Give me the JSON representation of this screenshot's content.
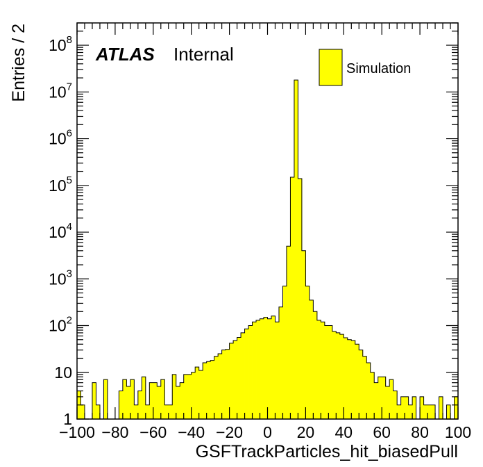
{
  "chart_data": {
    "type": "histogram",
    "xlabel": "GSFTrackParticles_hit_biasedPull",
    "ylabel": "Entries / 2",
    "xlim": [
      -100,
      100
    ],
    "ylim": [
      1,
      300000000
    ],
    "yscale": "log",
    "bin_width": 2,
    "fill_color": "#ffff00",
    "line_color": "#000000",
    "x_ticks": [
      -100,
      -80,
      -60,
      -40,
      -20,
      0,
      20,
      40,
      60,
      80,
      100
    ],
    "x_tick_labels": [
      "−100",
      "−80",
      "−60",
      "−40",
      "−20",
      "0",
      "20",
      "40",
      "60",
      "80",
      "100"
    ],
    "y_ticks": [
      {
        "value": 1,
        "base": "1",
        "exp": ""
      },
      {
        "value": 10,
        "base": "10",
        "exp": ""
      },
      {
        "value": 100,
        "base": "10",
        "exp": "2"
      },
      {
        "value": 1000,
        "base": "10",
        "exp": "3"
      },
      {
        "value": 10000,
        "base": "10",
        "exp": "4"
      },
      {
        "value": 100000,
        "base": "10",
        "exp": "5"
      },
      {
        "value": 1000000,
        "base": "10",
        "exp": "6"
      },
      {
        "value": 10000000,
        "base": "10",
        "exp": "7"
      },
      {
        "value": 100000000,
        "base": "10",
        "exp": "8"
      }
    ],
    "atlas_label": "ATLAS",
    "atlas_sublabel": "Internal",
    "legend": [
      {
        "name": "Simulation",
        "color": "#ffff00"
      }
    ],
    "legend_position": "top-right",
    "values": [
      4,
      2,
      1,
      1,
      6,
      2,
      1,
      7,
      1,
      0,
      0,
      4,
      7,
      5,
      7,
      2,
      4,
      8,
      2,
      6,
      6,
      5,
      7,
      2,
      2,
      9,
      5,
      6,
      9,
      9,
      10,
      13,
      11,
      16,
      17,
      18,
      22,
      25,
      30,
      31,
      42,
      48,
      56,
      70,
      85,
      100,
      120,
      130,
      140,
      150,
      140,
      160,
      120,
      250,
      700,
      5000,
      150000,
      18000000,
      140000,
      4000,
      700,
      350,
      200,
      130,
      120,
      100,
      100,
      75,
      70,
      65,
      55,
      50,
      48,
      40,
      30,
      22,
      16,
      10,
      6,
      8,
      8,
      5,
      7,
      4,
      2,
      3,
      3,
      2,
      3,
      1,
      3,
      2,
      2,
      2,
      1,
      3,
      1,
      2,
      1,
      3
    ]
  }
}
